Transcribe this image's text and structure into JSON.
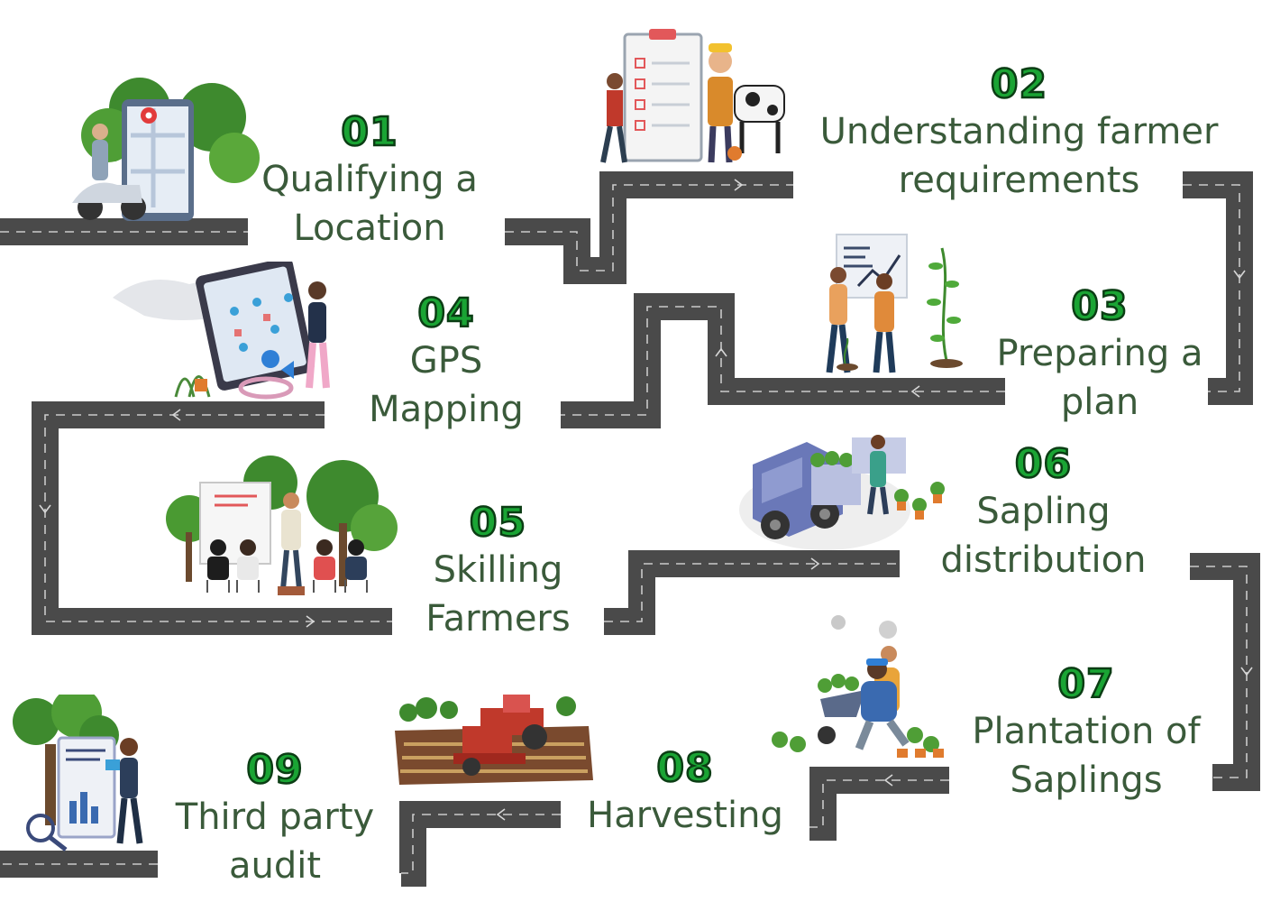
{
  "colors": {
    "number_fill": "#1aa434",
    "number_stroke": "#0b3d14",
    "label": "#3a5a3a",
    "road": "#4a4a4a",
    "tree": "#3e8a2e",
    "trunk": "#6b4a2e"
  },
  "steps": [
    {
      "number": "01",
      "line1": "Qualifying a",
      "line2": "Location",
      "icon": "scooter-map-icon"
    },
    {
      "number": "02",
      "line1": "Understanding farmer",
      "line2": "requirements",
      "icon": "farmer-checklist-icon"
    },
    {
      "number": "03",
      "line1": "Preparing a",
      "line2": "plan",
      "icon": "planning-chart-icon"
    },
    {
      "number": "04",
      "line1": "GPS",
      "line2": "Mapping",
      "icon": "gps-map-icon"
    },
    {
      "number": "05",
      "line1": "Skilling",
      "line2": "Farmers",
      "icon": "training-session-icon"
    },
    {
      "number": "06",
      "line1": "Sapling",
      "line2": "distribution",
      "icon": "delivery-truck-icon"
    },
    {
      "number": "07",
      "line1": "Plantation of",
      "line2": "Saplings",
      "icon": "planting-wheelbarrow-icon"
    },
    {
      "number": "08",
      "line1": "Harvesting",
      "line2": "",
      "icon": "harvester-icon"
    },
    {
      "number": "09",
      "line1": "Third party",
      "line2": "audit",
      "icon": "audit-report-icon"
    }
  ]
}
